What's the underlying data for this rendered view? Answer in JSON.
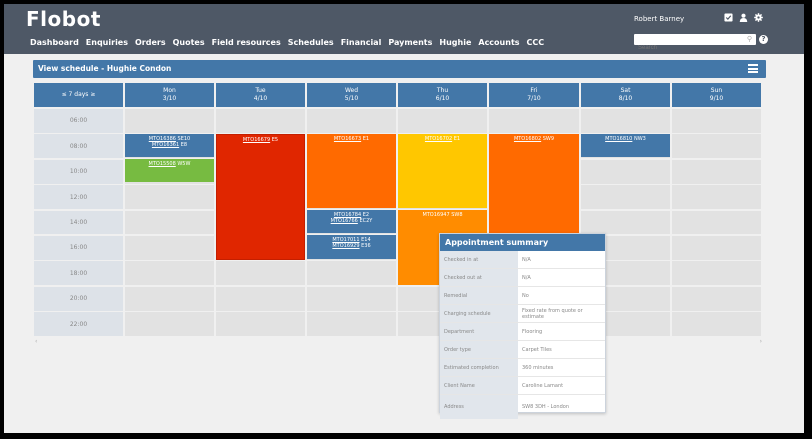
{
  "app": {
    "title": "Flobot"
  },
  "nav": {
    "items": [
      "Dashboard",
      "Enquiries",
      "Orders",
      "Quotes",
      "Field resources",
      "Schedules",
      "Financial",
      "Payments",
      "Hughie",
      "Accounts",
      "CCC"
    ]
  },
  "user": {
    "name": "Robert Barney"
  },
  "header_icons": [
    "checkbox-icon",
    "user-icon",
    "gear-icon"
  ],
  "search": {
    "placeholder": "Search",
    "value": ""
  },
  "panel": {
    "title": "View schedule - Hughie Condon",
    "menu_icon": "hamburger-icon"
  },
  "calendar": {
    "range_label": "≤ 7 days ≥",
    "days": [
      {
        "name": "Mon",
        "date": "3/10"
      },
      {
        "name": "Tue",
        "date": "4/10"
      },
      {
        "name": "Wed",
        "date": "5/10"
      },
      {
        "name": "Thu",
        "date": "6/10"
      },
      {
        "name": "Fri",
        "date": "7/10"
      },
      {
        "name": "Sat",
        "date": "8/10"
      },
      {
        "name": "Sun",
        "date": "9/10"
      }
    ],
    "times": [
      "06:00",
      "08:00",
      "10:00",
      "12:00",
      "14:00",
      "16:00",
      "18:00",
      "20:00",
      "22:00"
    ],
    "appointments": [
      {
        "day": "Mon",
        "lines": [
          {
            "ref": "MTO16386",
            "postcode": "SE10"
          },
          {
            "ref": "MTO16361",
            "postcode": "E8"
          }
        ],
        "color": "#4377a8"
      },
      {
        "day": "Mon",
        "lines": [
          {
            "ref": "MTO15508",
            "postcode": "W5W"
          }
        ],
        "color": "#77bb41"
      },
      {
        "day": "Tue",
        "lines": [
          {
            "ref": "MTO16679",
            "postcode": "E5"
          }
        ],
        "color": "#e02600"
      },
      {
        "day": "Wed",
        "lines": [
          {
            "ref": "MTO16673",
            "postcode": "E1"
          }
        ],
        "color": "#ff6a00"
      },
      {
        "day": "Wed",
        "lines": [
          {
            "ref": "MTO16784",
            "postcode": "E2"
          },
          {
            "ref": "MTO16766",
            "postcode": "EC2Y"
          }
        ],
        "color": "#4377a8"
      },
      {
        "day": "Wed",
        "lines": [
          {
            "ref": "MTO17011",
            "postcode": "E14"
          },
          {
            "ref": "MTO16929",
            "postcode": "E36"
          }
        ],
        "color": "#4377a8"
      },
      {
        "day": "Thu",
        "lines": [
          {
            "ref": "MTO16702",
            "postcode": "E1"
          }
        ],
        "color": "#ffc700"
      },
      {
        "day": "Thu",
        "lines": [
          {
            "ref": "MTO16947",
            "postcode": "SW8"
          }
        ],
        "color": "#ff8c00"
      },
      {
        "day": "Fri",
        "lines": [
          {
            "ref": "MTO16802",
            "postcode": "SW9"
          }
        ],
        "color": "#ff6a00"
      },
      {
        "day": "Sat",
        "lines": [
          {
            "ref": "MTO16810",
            "postcode": "NW3"
          }
        ],
        "color": "#4377a8"
      }
    ]
  },
  "summary": {
    "title": "Appointment summary",
    "rows": [
      {
        "label": "Checked in at",
        "value": "N/A"
      },
      {
        "label": "Checked out at",
        "value": "N/A"
      },
      {
        "label": "Remedial",
        "value": "No"
      },
      {
        "label": "Charging schedule",
        "value": "Fixed rate from quote or estimate"
      },
      {
        "label": "Department",
        "value": "Flooring"
      },
      {
        "label": "Order type",
        "value": "Carpet Tiles"
      },
      {
        "label": "Estimated completion",
        "value": "360 minutes"
      },
      {
        "label": "Client Name",
        "value": "Caroline Lamant"
      },
      {
        "label": "Address",
        "value": "SW8 3DH - London"
      }
    ]
  },
  "colors": {
    "header": "#4e5866",
    "accent": "#4377a8",
    "red": "#e02600",
    "orange": "#ff6a00",
    "yellow": "#ffc700",
    "green": "#77bb41"
  }
}
